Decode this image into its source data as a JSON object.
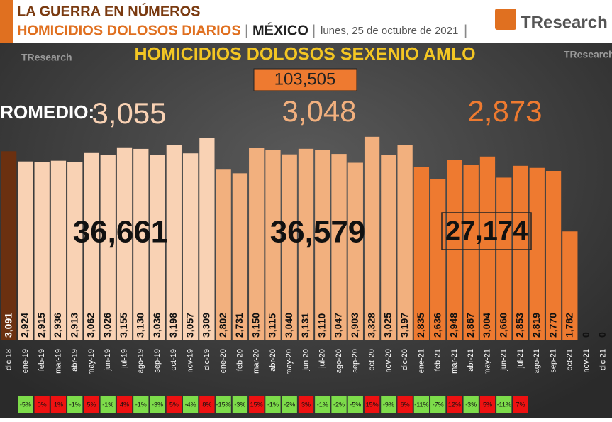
{
  "header": {
    "line1": "LA GUERRA EN NÚMEROS",
    "line2": "HOMICIDIOS DOLOSOS DIARIOS",
    "country": "MÉXICO",
    "date": "lunes, 25 de octubre de 2021",
    "logo": "TResearch"
  },
  "chart_data": {
    "type": "bar",
    "title": "HOMICIDIOS DOLOSOS SEXENIO AMLO",
    "annotations": {
      "total": "103,505",
      "average_label": "PROMEDIO:",
      "averages": [
        "3,055",
        "3,048",
        "2,873"
      ],
      "year_totals": [
        "36,661",
        "36,579",
        "27,174"
      ]
    },
    "categories": [
      "dic-18",
      "ene-19",
      "feb-19",
      "mar-19",
      "abr-19",
      "may-19",
      "jun-19",
      "jul-19",
      "ago-19",
      "sep-19",
      "oct-19",
      "nov-19",
      "dic-19",
      "ene-20",
      "feb-20",
      "mar-20",
      "abr-20",
      "may-20",
      "jun-20",
      "jul-20",
      "ago-20",
      "sep-20",
      "oct-20",
      "nov-20",
      "dic-20",
      "ene-21",
      "feb-21",
      "mar-21",
      "abr-21",
      "may-21",
      "jun-21",
      "jul-21",
      "ago-21",
      "sep-21",
      "oct-21",
      "nov-21",
      "dic-21"
    ],
    "values": [
      3091,
      2924,
      2915,
      2936,
      2913,
      3062,
      3026,
      3155,
      3130,
      3036,
      3198,
      3057,
      3309,
      2802,
      2731,
      3150,
      3115,
      3040,
      3131,
      3110,
      3047,
      2903,
      3328,
      3025,
      3197,
      2835,
      2636,
      2948,
      2867,
      3004,
      2660,
      2853,
      2819,
      2770,
      1782,
      0,
      0
    ],
    "value_labels": [
      "3,091",
      "2,924",
      "2,915",
      "2,936",
      "2,913",
      "3,062",
      "3,026",
      "3,155",
      "3,130",
      "3,036",
      "3,198",
      "3,057",
      "3,309",
      "2,802",
      "2,731",
      "3,150",
      "3,115",
      "3,040",
      "3,131",
      "3,110",
      "3,047",
      "2,903",
      "3,328",
      "3,025",
      "3,197",
      "2,835",
      "2,636",
      "2,948",
      "2,867",
      "3,004",
      "2,660",
      "2,853",
      "2,819",
      "2,770",
      "1,782",
      "0",
      "0"
    ],
    "colors": [
      "#6b3010",
      "#f9d2b4",
      "#f9d2b4",
      "#f9d2b4",
      "#f9d2b4",
      "#f9d2b4",
      "#f9d2b4",
      "#f9d2b4",
      "#f9d2b4",
      "#f9d2b4",
      "#f9d2b4",
      "#f9d2b4",
      "#f9d2b4",
      "#f2b07e",
      "#f2b07e",
      "#f2b07e",
      "#f2b07e",
      "#f2b07e",
      "#f2b07e",
      "#f2b07e",
      "#f2b07e",
      "#f2b07e",
      "#f2b07e",
      "#f2b07e",
      "#f2b07e",
      "#ee7a30",
      "#ee7a30",
      "#ee7a30",
      "#ee7a30",
      "#ee7a30",
      "#ee7a30",
      "#ee7a30",
      "#ee7a30",
      "#ee7a30",
      "#ee7a30",
      "#ee7a30",
      "#ee7a30"
    ],
    "changes": [
      "-5%",
      "0%",
      "1%",
      "-1%",
      "5%",
      "-1%",
      "4%",
      "-1%",
      "-3%",
      "5%",
      "-4%",
      "8%",
      "-15%",
      "-3%",
      "15%",
      "-1%",
      "-2%",
      "3%",
      "-1%",
      "-2%",
      "-5%",
      "15%",
      "-9%",
      "6%",
      "-11%",
      "-7%",
      "12%",
      "-3%",
      "5%",
      "-11%",
      "7%"
    ],
    "change_colors": {
      "down": "#7ddc4a",
      "up": "#ee1111"
    },
    "ylim": [
      0,
      3500
    ]
  }
}
